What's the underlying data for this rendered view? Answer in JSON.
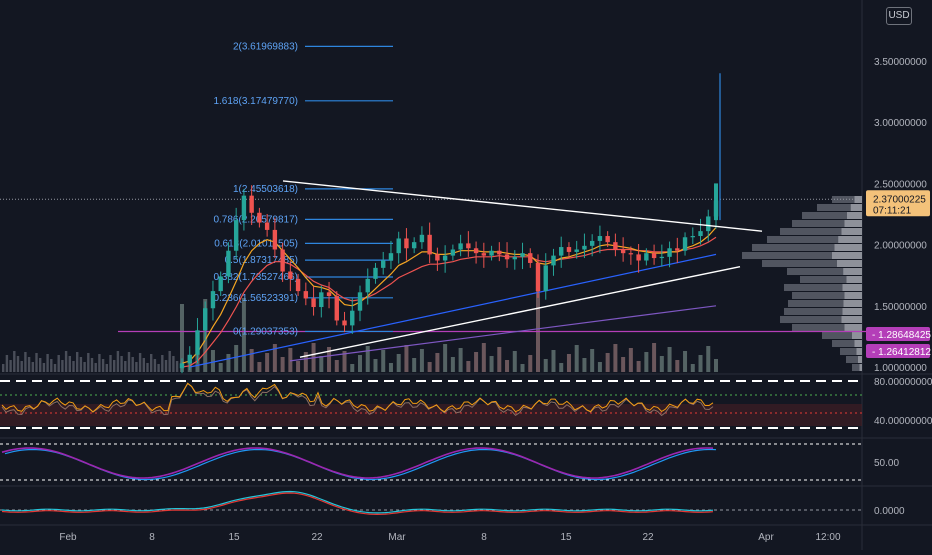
{
  "currency_badge": "USD",
  "colors": {
    "background": "#131722",
    "axis_text": "#b2b5be",
    "fib": "#2e86de",
    "fib_text": "#5ea3f5",
    "candle_up": "#26a69a",
    "candle_down": "#ef5350",
    "trendline": "#ffffff",
    "highlight_pink": "#b43eb8",
    "price_badge": "#f4c27a",
    "ma_orange": "#f5a623",
    "ma_blue": "#2962ff",
    "ma_purple": "#7e57c2",
    "volume": "#787b86",
    "rsi_line": "#f39c12",
    "stoch_purple": "#9c27b0",
    "stoch_blue": "#2196f3",
    "macd_blue": "#26c6da",
    "macd_red": "#e53935"
  },
  "chart_data": {
    "type": "candlestick",
    "price_axis": {
      "ticks": [
        {
          "value": 3.5,
          "label": "3.50000000"
        },
        {
          "value": 3.0,
          "label": "3.00000000"
        },
        {
          "value": 2.5,
          "label": "2.50000000"
        },
        {
          "value": 2.0,
          "label": "2.00000000"
        },
        {
          "value": 1.5,
          "label": "1.50000000"
        },
        {
          "value": 1.0,
          "label": "1.00000000"
        }
      ],
      "range": [
        0.95,
        3.85
      ]
    },
    "time_axis": {
      "ticks": [
        "Feb",
        "8",
        "15",
        "22",
        "Mar",
        "8",
        "15",
        "22",
        "Apr",
        "12:00"
      ]
    },
    "current_price": {
      "value": 2.37000225,
      "label": "2.37000225",
      "countdown": "07:11:21"
    },
    "price_badges": [
      {
        "value": 1.28648425,
        "label": "1.28648425"
      },
      {
        "value": 1.26412812,
        "label": "1.26412812"
      }
    ],
    "fib_levels": [
      {
        "label": "2(3.61969883)",
        "value": 3.61969883
      },
      {
        "label": "1.618(3.17479770)",
        "value": 3.1747977
      },
      {
        "label": "1(2.45503618)",
        "value": 2.45503618
      },
      {
        "label": "0.786(2.20579817)",
        "value": 2.20579817
      },
      {
        "label": "0.618(2.01011505)",
        "value": 2.01011505
      },
      {
        "label": "0.5(1.87317485)",
        "value": 1.87317485
      },
      {
        "label": "0.382(1.73527466)",
        "value": 1.73527466
      },
      {
        "label": "0.236(1.56523391)",
        "value": 1.56523391
      },
      {
        "label": "0(1.29037353)",
        "value": 1.29037353
      }
    ],
    "horizontal_line": 1.29,
    "trendlines": [
      {
        "from": [
          "Feb 19",
          2.52
        ],
        "to": [
          "Mar 31",
          2.11
        ]
      },
      {
        "from": [
          "Feb 19",
          1.1
        ],
        "to": [
          "Mar 31",
          1.83
        ]
      }
    ],
    "series": [
      {
        "name": "",
        "kind": "candles",
        "close": [
          1.03,
          1.1,
          1.3,
          1.48,
          1.62,
          1.74,
          1.95,
          2.2,
          2.4,
          2.26,
          2.18,
          2.12,
          1.96,
          1.78,
          1.72,
          1.62,
          1.56,
          1.49,
          1.61,
          1.58,
          1.38,
          1.34,
          1.46,
          1.61,
          1.72,
          1.81,
          1.87,
          1.93,
          2.05,
          1.97,
          2.02,
          2.08,
          1.92,
          1.87,
          1.91,
          1.96,
          2.01,
          1.97,
          1.93,
          1.91,
          1.95,
          1.92,
          1.88,
          1.9,
          1.93,
          1.85,
          1.62,
          1.83,
          1.91,
          1.98,
          1.94,
          1.96,
          1.99,
          2.03,
          2.07,
          2.02,
          1.96,
          1.93,
          1.92,
          1.87,
          1.93,
          1.89,
          1.9,
          1.97,
          1.95,
          2.06,
          2.07,
          2.11,
          2.23,
          2.36
        ]
      },
      {
        "name": "",
        "kind": "ema_fast",
        "values": [
          1.03,
          1.05,
          1.12,
          1.22,
          1.33,
          1.43,
          1.56,
          1.7,
          1.85,
          1.95,
          2.01,
          2.04,
          2.02,
          1.95,
          1.88,
          1.81,
          1.73,
          1.66,
          1.65,
          1.63,
          1.57,
          1.51,
          1.5,
          1.53,
          1.58,
          1.64,
          1.7,
          1.76,
          1.83,
          1.86,
          1.9,
          1.94,
          1.94,
          1.92,
          1.92,
          1.93,
          1.95,
          1.95,
          1.95,
          1.94,
          1.94,
          1.94,
          1.93,
          1.92,
          1.92,
          1.91,
          1.85,
          1.84,
          1.86,
          1.89,
          1.9,
          1.92,
          1.94,
          1.96,
          1.99,
          2.0,
          1.99,
          1.98,
          1.97,
          1.95,
          1.94,
          1.93,
          1.93,
          1.94,
          1.94,
          1.97,
          1.99,
          2.02,
          2.07,
          2.14
        ]
      },
      {
        "name": "",
        "kind": "ema_mid",
        "values": [
          1.0,
          1.01,
          1.05,
          1.12,
          1.2,
          1.28,
          1.38,
          1.49,
          1.61,
          1.7,
          1.77,
          1.83,
          1.86,
          1.86,
          1.84,
          1.8,
          1.75,
          1.7,
          1.67,
          1.65,
          1.6,
          1.56,
          1.54,
          1.55,
          1.57,
          1.6,
          1.64,
          1.68,
          1.73,
          1.76,
          1.79,
          1.82,
          1.84,
          1.84,
          1.85,
          1.86,
          1.88,
          1.89,
          1.9,
          1.9,
          1.9,
          1.91,
          1.9,
          1.9,
          1.9,
          1.9,
          1.87,
          1.86,
          1.87,
          1.88,
          1.89,
          1.9,
          1.91,
          1.93,
          1.95,
          1.96,
          1.96,
          1.96,
          1.96,
          1.95,
          1.95,
          1.94,
          1.94,
          1.94,
          1.94,
          1.96,
          1.97,
          1.99,
          2.02,
          2.06
        ]
      },
      {
        "name": "",
        "kind": "sma_long",
        "values_range": [
          1.0,
          1.92
        ]
      },
      {
        "name": "",
        "kind": "sma_200",
        "values_range": [
          1.2,
          1.5
        ]
      }
    ],
    "panes": [
      {
        "name": "",
        "type": "rsi",
        "ticks": [
          "80.00000000",
          "40.00000000"
        ],
        "levels": [
          80,
          70,
          50,
          40,
          30
        ]
      },
      {
        "name": "",
        "type": "stochastic",
        "ticks": [
          "50.00"
        ]
      },
      {
        "name": "",
        "type": "macd",
        "ticks": [
          "0.0000"
        ]
      }
    ],
    "volume_profile": "right-edge",
    "grid": false
  }
}
